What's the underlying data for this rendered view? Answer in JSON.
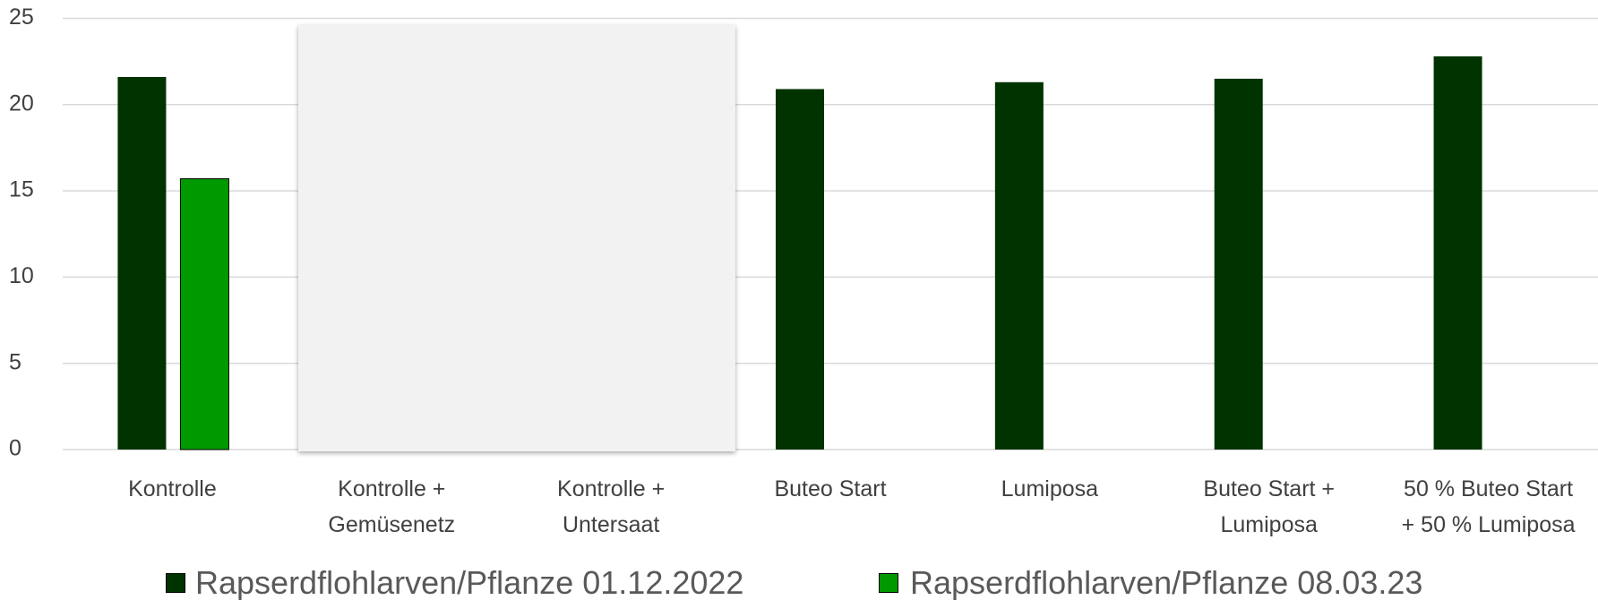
{
  "chart_data": {
    "type": "bar",
    "categories": [
      "Kontrolle",
      "Kontrolle + Gemüsenetz",
      "Kontrolle + Untersaat",
      "Buteo Start",
      "Lumiposa",
      "Buteo Start + Lumiposa",
      "50 % Buteo Start + 50 % Lumiposa"
    ],
    "series": [
      {
        "name": "Rapserdflohlarven/Pflanze 01.12.2022",
        "color": "#003300",
        "values": [
          21.6,
          null,
          null,
          20.9,
          21.3,
          21.5,
          22.8
        ]
      },
      {
        "name": "Rapserdflohlarven/Pflanze 08.03.23",
        "color": "#009900",
        "values": [
          15.7,
          null,
          null,
          null,
          null,
          null,
          null
        ]
      }
    ],
    "ylim": [
      0,
      25
    ],
    "yticks": [
      0,
      5,
      10,
      15,
      20,
      25
    ],
    "grid": true
  }
}
